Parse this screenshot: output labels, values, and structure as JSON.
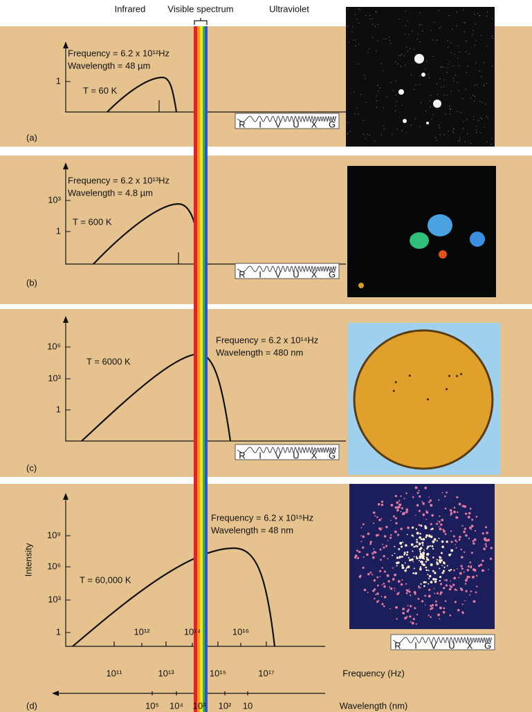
{
  "header": {
    "infrared": "Infrared",
    "visible": "Visible spectrum",
    "ultraviolet": "Ultraviolet"
  },
  "spectrum_bands": [
    "R",
    "I",
    "V",
    "U",
    "X",
    "G"
  ],
  "panels": [
    {
      "label": "(a)",
      "frequency": "Frequency  = 6.2 x 10¹²Hz",
      "wavelength": "Wavelength = 48 µm",
      "temperature": "T = 60 K",
      "y_ticks": [
        "1"
      ],
      "band_highlight": 2
    },
    {
      "label": "(b)",
      "frequency": "Frequency  = 6.2 x 10¹³Hz",
      "wavelength": "Wavelength = 4.8 µm",
      "temperature": "T = 600 K",
      "y_ticks": [
        "10³",
        "1"
      ],
      "band_highlight": 1
    },
    {
      "label": "(c)",
      "frequency": "Frequency  = 6.2 x 10¹⁴Hz",
      "wavelength": "Wavelength = 480 nm",
      "temperature": "T = 6000 K",
      "y_ticks": [
        "10⁶",
        "10³",
        "1"
      ],
      "band_highlight": 2
    },
    {
      "label": "(d)",
      "frequency": "Frequency  = 6.2 x 10¹⁵Hz",
      "wavelength": "Wavelength = 48 nm",
      "temperature": "T = 60,000 K",
      "y_ticks": [
        "10⁹",
        "10⁶",
        "10³",
        "1"
      ],
      "band_highlight": 3
    }
  ],
  "axes": {
    "y_label": "Intensity",
    "frequency_ticks_upper": [
      "10¹²",
      "10¹⁴",
      "10¹⁶"
    ],
    "frequency_ticks_lower": [
      "10¹¹",
      "10¹³",
      "10¹⁵",
      "10¹⁷"
    ],
    "frequency_label": "Frequency (Hz)",
    "wavelength_ticks": [
      "10⁵",
      "10⁴",
      "10³",
      "10²",
      "10"
    ],
    "wavelength_label": "Wavelength (nm)"
  }
}
